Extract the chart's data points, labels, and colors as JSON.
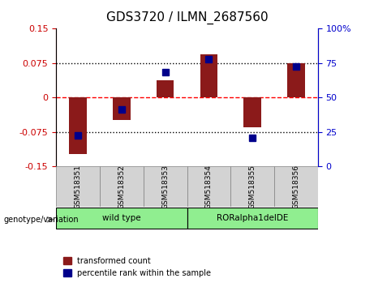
{
  "title": "GDS3720 / ILMN_2687560",
  "samples": [
    "GSM518351",
    "GSM518352",
    "GSM518353",
    "GSM518354",
    "GSM518355",
    "GSM518356"
  ],
  "red_bars": [
    -0.123,
    -0.048,
    0.038,
    0.095,
    -0.065,
    0.075
  ],
  "blue_markers": [
    -0.082,
    -0.025,
    0.055,
    0.083,
    -0.088,
    0.068
  ],
  "ylim_left": [
    -0.15,
    0.15
  ],
  "ylim_right": [
    0,
    100
  ],
  "yticks_left": [
    -0.15,
    -0.075,
    0,
    0.075,
    0.15
  ],
  "yticks_right": [
    0,
    25,
    50,
    75,
    100
  ],
  "ytick_labels_left": [
    "-0.15",
    "-0.075",
    "0",
    "0.075",
    "0.15"
  ],
  "ytick_labels_right": [
    "0",
    "25",
    "50",
    "75",
    "100%"
  ],
  "hlines": [
    -0.075,
    0,
    0.075
  ],
  "hline_styles": [
    "dotted",
    "dashed",
    "dotted"
  ],
  "hline_colors": [
    "black",
    "red",
    "black"
  ],
  "groups": [
    {
      "label": "wild type",
      "samples": [
        0,
        1,
        2
      ],
      "color": "#90EE90"
    },
    {
      "label": "RORalpha1delDE",
      "samples": [
        3,
        4,
        5
      ],
      "color": "#90EE90"
    }
  ],
  "group_colors": [
    "#90EE90",
    "#90EE90"
  ],
  "bar_color": "#8B1A1A",
  "marker_color": "#00008B",
  "bar_width": 0.4,
  "marker_size": 6,
  "xlabel": "",
  "left_label_color": "#CC0000",
  "right_label_color": "#0000CC",
  "background_color": "#ffffff",
  "plot_bg": "#ffffff",
  "legend_red": "transformed count",
  "legend_blue": "percentile rank within the sample",
  "genotype_label": "genotype/variation"
}
